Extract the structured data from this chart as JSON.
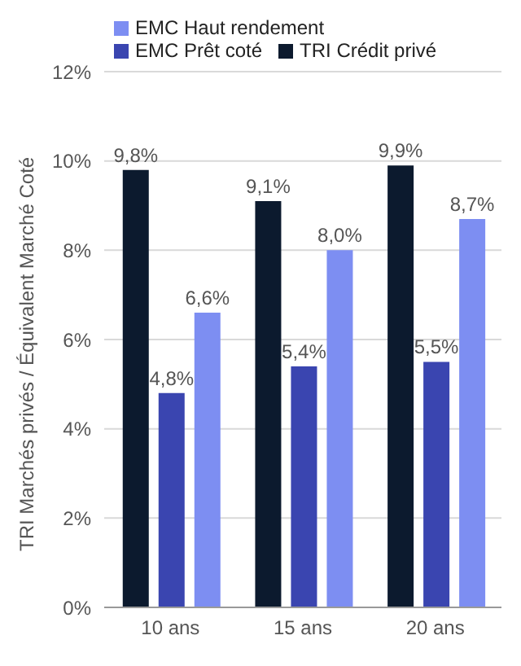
{
  "chart_data": {
    "type": "bar",
    "ylabel": "TRI Marchés privés / Équivalent Marché Coté",
    "categories": [
      "10 ans",
      "15 ans",
      "20 ans"
    ],
    "series": [
      {
        "name": "TRI Crédit privé",
        "color": "#0c1a2e",
        "values": [
          9.8,
          9.1,
          9.9
        ],
        "value_labels": [
          "9,8%",
          "9,1%",
          "9,9%"
        ]
      },
      {
        "name": "EMC Prêt coté",
        "color": "#3a45b0",
        "values": [
          4.8,
          5.4,
          5.5
        ],
        "value_labels": [
          "4,8%",
          "5,4%",
          "5,5%"
        ]
      },
      {
        "name": "EMC Haut rendement",
        "color": "#7d8ef2",
        "values": [
          6.6,
          8.0,
          8.7
        ],
        "value_labels": [
          "6,6%",
          "8,0%",
          "8,7%"
        ]
      }
    ],
    "ylim": [
      0,
      12
    ],
    "yticks": [
      {
        "value": 0,
        "label": "0%"
      },
      {
        "value": 2,
        "label": "2%"
      },
      {
        "value": 4,
        "label": "4%"
      },
      {
        "value": 6,
        "label": "6%"
      },
      {
        "value": 8,
        "label": "8%"
      },
      {
        "value": 10,
        "label": "10%"
      },
      {
        "value": 12,
        "label": "12%"
      }
    ],
    "grid": "y",
    "legend": "top left"
  }
}
